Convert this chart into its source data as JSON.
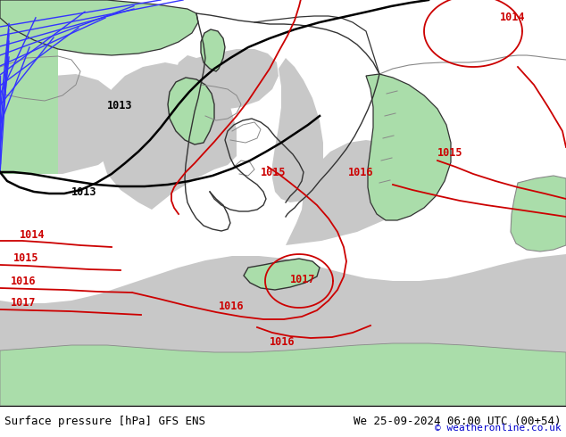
{
  "title_left": "Surface pressure [hPa] GFS ENS",
  "title_right": "We 25-09-2024 06:00 UTC (00+54)",
  "copyright": "© weatheronline.co.uk",
  "land_color": "#aaddaa",
  "sea_color": "#c8c8c8",
  "footer_bg": "#ffffff",
  "footer_text_color": "#000000",
  "copyright_color": "#0000cc",
  "isobar_red": "#cc0000",
  "isobar_black": "#000000",
  "isobar_blue": "#3333ff",
  "border_dark": "#333333",
  "border_light": "#888888",
  "label_fontsize": 8.5
}
